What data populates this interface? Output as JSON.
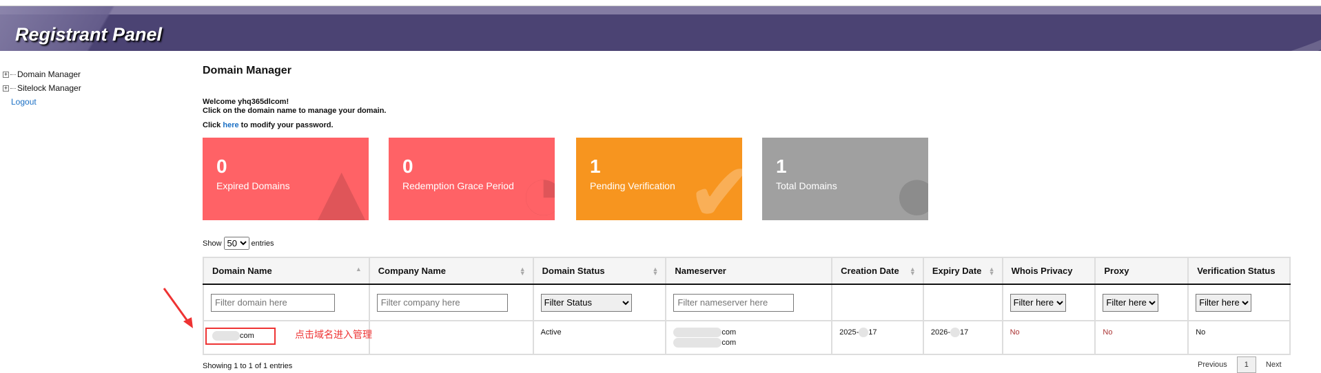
{
  "header": {
    "title": "Registrant Panel"
  },
  "sidebar": {
    "items": [
      {
        "label": "Domain Manager"
      },
      {
        "label": "Sitelock Manager"
      },
      {
        "label": "Logout"
      }
    ]
  },
  "main": {
    "title": "Domain Manager",
    "welcome": "Welcome yhq365dlcom!",
    "instruction": "Click on the domain name to manage your domain.",
    "pw_prefix": "Click ",
    "pw_link": "here",
    "pw_suffix": " to modify your password.",
    "cards": [
      {
        "value": "0",
        "label": "Expired Domains",
        "color": "#ff6266",
        "icon": "warning-icon"
      },
      {
        "value": "0",
        "label": "Redemption Grace Period",
        "color": "#ff6266",
        "icon": "clock-icon"
      },
      {
        "value": "1",
        "label": "Pending Verification",
        "color": "#f7951f",
        "icon": "check-icon"
      },
      {
        "value": "1",
        "label": "Total Domains",
        "color": "#a0a0a0",
        "icon": "globe-icon"
      }
    ],
    "show_label": "Show",
    "entries_value": "50",
    "entries_label": "entries",
    "table": {
      "headers": [
        "Domain Name",
        "Company Name",
        "Domain Status",
        "Nameserver",
        "Creation Date",
        "Expiry Date",
        "Whois Privacy",
        "Proxy",
        "Verification Status"
      ],
      "filters": {
        "domain": "Filter domain here",
        "company": "Filter company here",
        "status": "Filter Status",
        "nameserver": "Filter nameserver here",
        "whois": "Filter here",
        "proxy": "Filter here",
        "verification": "Filter here"
      },
      "row": {
        "domain": "com",
        "company": "",
        "status": "Active",
        "ns1": "com",
        "ns2": "com",
        "created_a": "2025-",
        "created_b": "17",
        "expiry_a": "2026-",
        "expiry_b": "17",
        "whois": "No",
        "proxy": "No",
        "verification": "No"
      }
    },
    "annotation": "点击域名进入管理",
    "footer": "Showing 1 to 1 of 1 entries",
    "pager": {
      "prev": "Previous",
      "page": "1",
      "next": "Next"
    }
  }
}
